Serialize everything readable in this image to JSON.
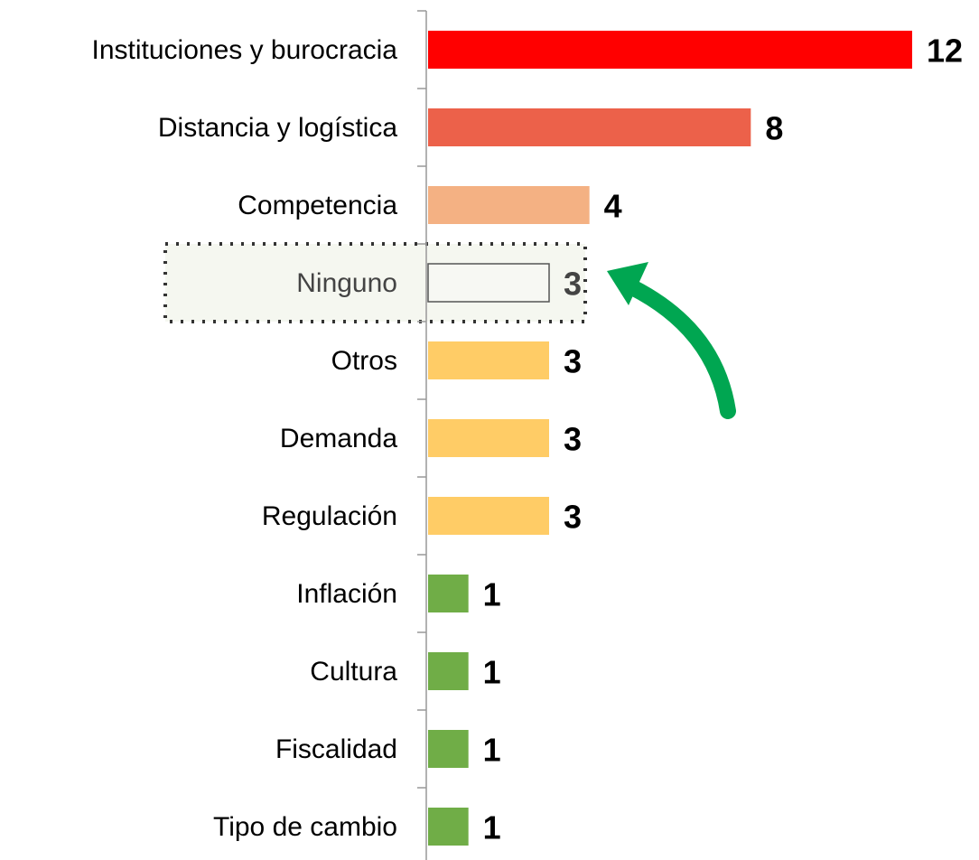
{
  "chart_data": {
    "type": "bar",
    "orientation": "horizontal",
    "categories": [
      "Instituciones y burocracia",
      "Distancia y logística",
      "Competencia",
      "Ninguno",
      "Otros",
      "Demanda",
      "Regulación",
      "Inflación",
      "Cultura",
      "Fiscalidad",
      "Tipo de cambio"
    ],
    "values": [
      12,
      8,
      4,
      3,
      3,
      3,
      3,
      1,
      1,
      1,
      1
    ],
    "colors": [
      "#ff0000",
      "#ec614a",
      "#f4b183",
      "#f7f8f3",
      "#ffcc66",
      "#ffcc66",
      "#ffcc66",
      "#70ad47",
      "#70ad47",
      "#70ad47",
      "#70ad47"
    ]
  }
}
